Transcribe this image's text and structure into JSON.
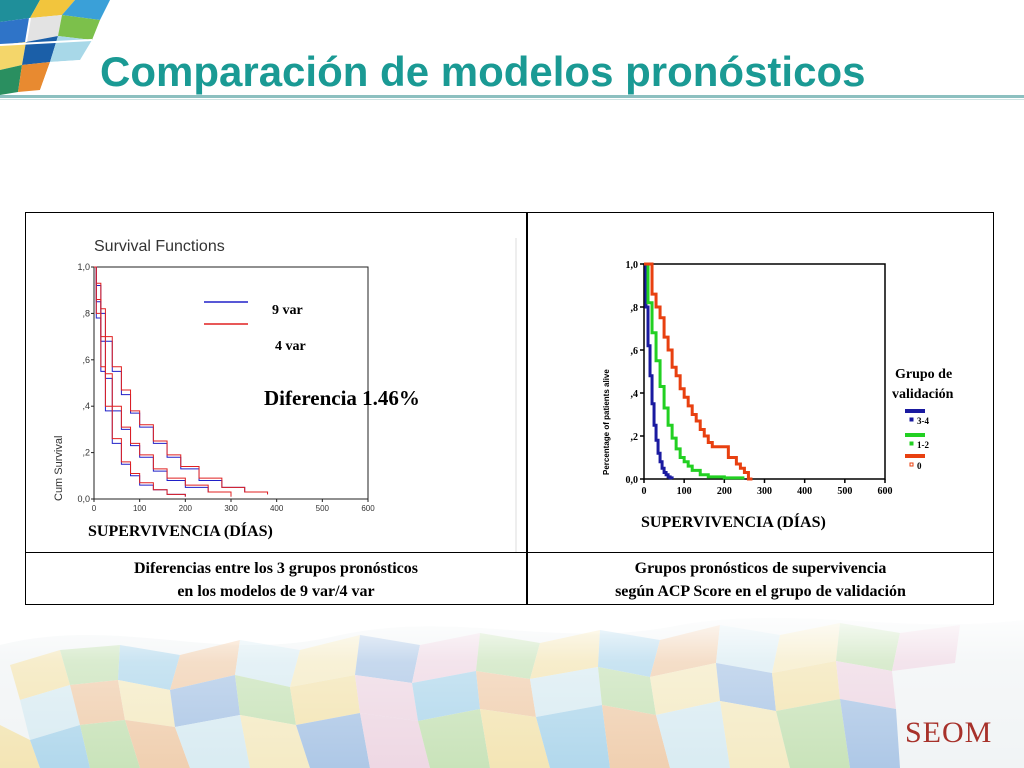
{
  "slide": {
    "title": "Comparación de modelos pronósticos",
    "brand": "SEOM",
    "colors": {
      "title": "#1a9a94",
      "brand": "#a7312a"
    }
  },
  "left_panel": {
    "chart_title": "Survival Functions",
    "diff_label": "Diferencia 1.46%",
    "xlabel": "SUPERVIVENCIA (DÍAS)",
    "ylabel": "Cum Survival",
    "caption_line1": "Diferencias entre los 3 grupos pronósticos",
    "caption_line2": "en los modelos de 9 var/4 var"
  },
  "right_panel": {
    "xlabel": "SUPERVIVENCIA (DÍAS)",
    "ylabel": "Percentage of patients alive",
    "legend_title_1": "Grupo de",
    "legend_title_2": "validación",
    "caption_line1": "Grupos pronósticos de supervivencia",
    "caption_line2": "según ACP Score en el grupo de validación"
  },
  "chart_data": [
    {
      "type": "line",
      "title": "Survival Functions",
      "xlabel": "SUPERVIVENCIA (DÍAS)",
      "ylabel": "Cum Survival",
      "xlim": [
        0,
        600
      ],
      "ylim": [
        0,
        1
      ],
      "x_ticks": [
        "0",
        "100",
        "200",
        "300",
        "400",
        "500",
        "600"
      ],
      "y_ticks": [
        "0,0",
        ",2",
        ",4",
        ",6",
        ",8",
        "1,0"
      ],
      "annotation": "Diferencia 1.46%",
      "legend": [
        "9 var",
        "4 var"
      ],
      "series": [
        {
          "name": "9 var",
          "group": "A",
          "color": "#2020c8",
          "x": [
            0,
            5,
            15,
            25,
            40,
            60,
            80,
            100,
            130,
            160,
            190,
            230,
            280,
            330,
            380
          ],
          "y": [
            1.0,
            0.92,
            0.8,
            0.68,
            0.55,
            0.45,
            0.37,
            0.31,
            0.24,
            0.18,
            0.13,
            0.08,
            0.05,
            0.03,
            0.02
          ]
        },
        {
          "name": "4 var",
          "group": "A",
          "color": "#e02020",
          "x": [
            0,
            5,
            15,
            25,
            40,
            60,
            80,
            100,
            130,
            160,
            190,
            230,
            280,
            330,
            380
          ],
          "y": [
            1.0,
            0.93,
            0.82,
            0.7,
            0.57,
            0.47,
            0.38,
            0.32,
            0.25,
            0.19,
            0.14,
            0.09,
            0.05,
            0.03,
            0.02
          ]
        },
        {
          "name": "9 var",
          "group": "B",
          "color": "#2020c8",
          "x": [
            0,
            5,
            15,
            25,
            40,
            60,
            80,
            100,
            130,
            160,
            200,
            250,
            300
          ],
          "y": [
            1.0,
            0.85,
            0.68,
            0.52,
            0.38,
            0.3,
            0.23,
            0.18,
            0.12,
            0.08,
            0.05,
            0.03,
            0.01
          ]
        },
        {
          "name": "4 var",
          "group": "B",
          "color": "#e02020",
          "x": [
            0,
            5,
            15,
            25,
            40,
            60,
            80,
            100,
            130,
            160,
            200,
            250,
            300
          ],
          "y": [
            1.0,
            0.86,
            0.7,
            0.54,
            0.4,
            0.31,
            0.24,
            0.19,
            0.13,
            0.09,
            0.06,
            0.03,
            0.01
          ]
        },
        {
          "name": "9 var",
          "group": "C",
          "color": "#2020c8",
          "x": [
            0,
            5,
            15,
            25,
            40,
            60,
            80,
            100,
            130,
            160,
            200
          ],
          "y": [
            1.0,
            0.78,
            0.55,
            0.38,
            0.24,
            0.15,
            0.1,
            0.06,
            0.04,
            0.02,
            0.01
          ]
        },
        {
          "name": "4 var",
          "group": "C",
          "color": "#e02020",
          "x": [
            0,
            5,
            15,
            25,
            40,
            60,
            80,
            100,
            130,
            160,
            200
          ],
          "y": [
            1.0,
            0.8,
            0.57,
            0.4,
            0.26,
            0.16,
            0.11,
            0.07,
            0.04,
            0.02,
            0.01
          ]
        }
      ]
    },
    {
      "type": "line",
      "title": "",
      "xlabel": "SUPERVIVENCIA (DÍAS)",
      "ylabel": "Percentage of patients alive",
      "xlim": [
        0,
        600
      ],
      "ylim": [
        0,
        1
      ],
      "x_ticks": [
        "0",
        "100",
        "200",
        "300",
        "400",
        "500",
        "600"
      ],
      "y_ticks": [
        "0,0",
        ",2",
        ",4",
        ",6",
        ",8",
        "1,0"
      ],
      "legend_title": "Grupo de validación",
      "legend_position": "right",
      "series": [
        {
          "name": "3-4",
          "color": "#1a1aa0",
          "x": [
            0,
            5,
            10,
            15,
            20,
            25,
            30,
            35,
            40,
            45,
            50,
            55,
            60,
            65,
            70
          ],
          "y": [
            1.0,
            0.8,
            0.62,
            0.48,
            0.35,
            0.25,
            0.18,
            0.12,
            0.08,
            0.05,
            0.03,
            0.02,
            0.01,
            0.005,
            0.0
          ]
        },
        {
          "name": "1-2",
          "color": "#22d022",
          "x": [
            0,
            10,
            20,
            30,
            40,
            50,
            60,
            70,
            80,
            90,
            100,
            110,
            120,
            140,
            160,
            200,
            250
          ],
          "y": [
            1.0,
            0.82,
            0.68,
            0.55,
            0.43,
            0.33,
            0.25,
            0.19,
            0.14,
            0.1,
            0.08,
            0.06,
            0.04,
            0.02,
            0.01,
            0.005,
            0.005
          ]
        },
        {
          "name": "0",
          "color": "#e84010",
          "x": [
            0,
            20,
            30,
            40,
            50,
            60,
            70,
            80,
            90,
            100,
            110,
            120,
            130,
            140,
            150,
            160,
            170,
            180,
            190,
            200,
            210,
            220,
            230,
            240,
            250,
            260,
            270
          ],
          "y": [
            1.0,
            0.86,
            0.8,
            0.75,
            0.66,
            0.6,
            0.52,
            0.48,
            0.42,
            0.38,
            0.34,
            0.3,
            0.27,
            0.23,
            0.2,
            0.17,
            0.15,
            0.15,
            0.15,
            0.15,
            0.1,
            0.1,
            0.07,
            0.05,
            0.03,
            0.0,
            0.0
          ]
        }
      ]
    }
  ]
}
